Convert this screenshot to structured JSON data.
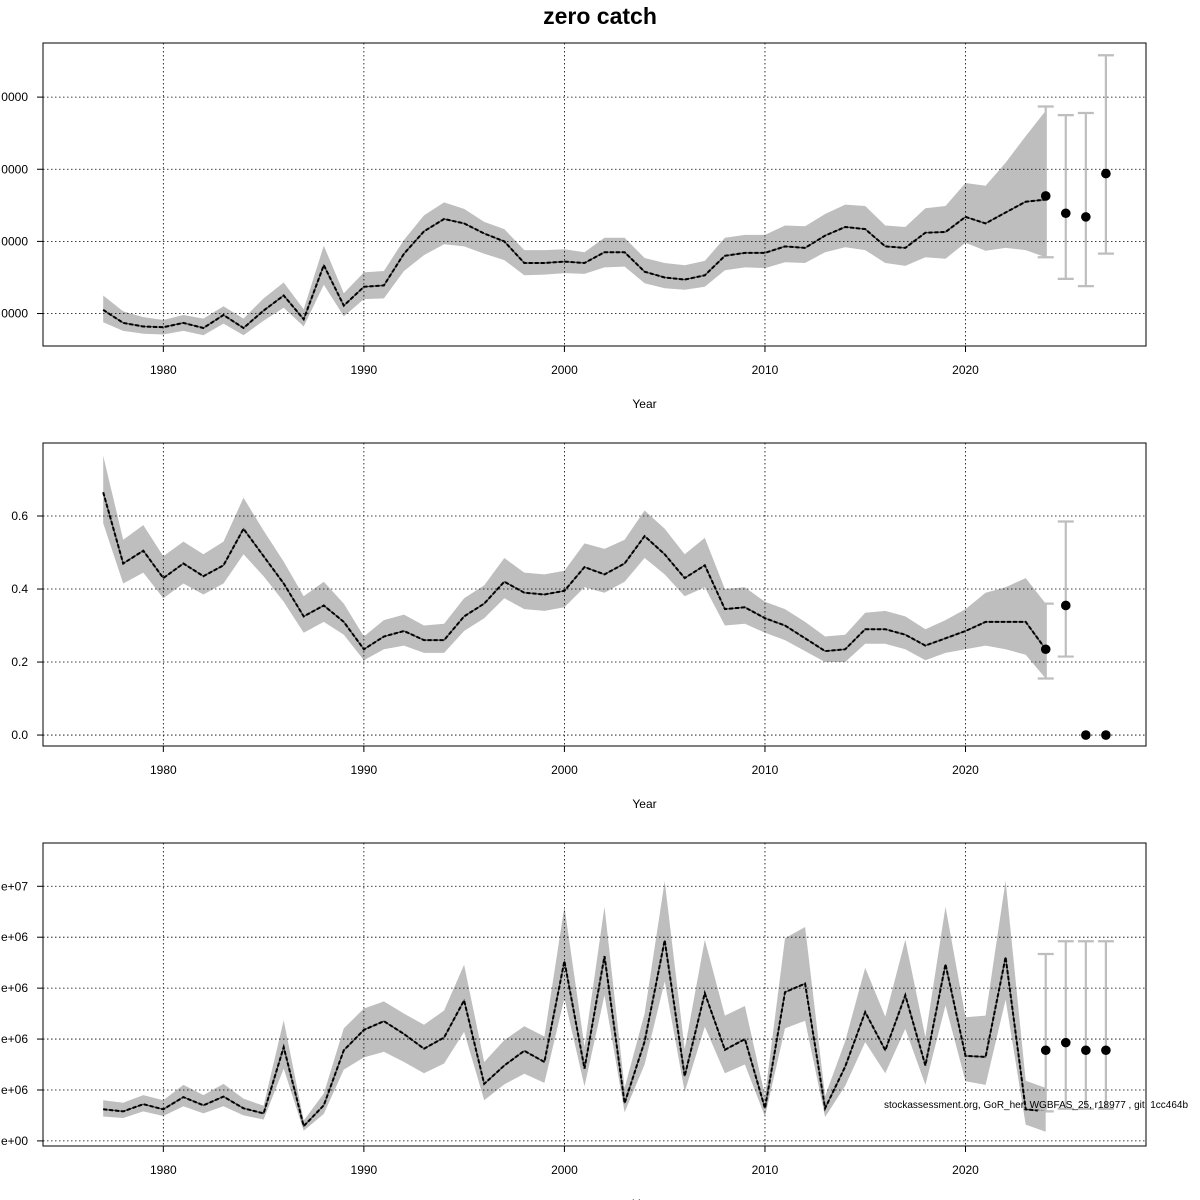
{
  "title": "zero catch",
  "footnote": "stockassessment.org, GoR_her_WGBFAS_25, r18977 , git: 1cc464b",
  "colors": {
    "band": "#bebebe",
    "line": "#000000",
    "grid": "#000000",
    "errorbar": "#bebebe",
    "point": "#000000"
  },
  "chart_data": [
    {
      "type": "line",
      "xlabel": "Year",
      "ylabel": "",
      "xlim": [
        1974,
        2029
      ],
      "ylim": [
        -45000,
        375000
      ],
      "grid": true,
      "x_ticks": [
        1980,
        1990,
        2000,
        2010,
        2020
      ],
      "x_tick_labels": [
        "1980",
        "1990",
        "2000",
        "2010",
        "2020"
      ],
      "y_ticks": [
        0,
        100000,
        200000,
        300000
      ],
      "y_tick_labels": [
        "0000",
        "0000",
        "0000",
        "0000"
      ],
      "years": [
        1977,
        1978,
        1979,
        1980,
        1981,
        1982,
        1983,
        1984,
        1985,
        1986,
        1987,
        1988,
        1989,
        1990,
        1991,
        1992,
        1993,
        1994,
        1995,
        1996,
        1997,
        1998,
        1999,
        2000,
        2001,
        2002,
        2003,
        2004,
        2005,
        2006,
        2007,
        2008,
        2009,
        2010,
        2011,
        2012,
        2013,
        2014,
        2015,
        2016,
        2017,
        2018,
        2019,
        2020,
        2021,
        2022,
        2023,
        2024
      ],
      "estimate": [
        5000,
        -13000,
        -18000,
        -19000,
        -13000,
        -20000,
        -2000,
        -20000,
        4000,
        25000,
        -8000,
        67000,
        11000,
        37000,
        39000,
        83000,
        114000,
        131000,
        125000,
        111000,
        100000,
        70000,
        70000,
        72000,
        70000,
        85000,
        85000,
        58000,
        50000,
        47000,
        53000,
        80000,
        84000,
        84000,
        93000,
        91000,
        108000,
        120000,
        117000,
        93000,
        91000,
        112000,
        113000,
        134000,
        125000,
        140000,
        155000,
        158000
      ],
      "lower": [
        -12000,
        -24000,
        -28000,
        -29000,
        -24000,
        -30000,
        -14000,
        -30000,
        -10000,
        8000,
        -18000,
        40000,
        -4000,
        20000,
        21000,
        59000,
        81000,
        96000,
        93000,
        83000,
        74000,
        53000,
        54000,
        56000,
        55000,
        64000,
        65000,
        42000,
        35000,
        33000,
        37000,
        60000,
        64000,
        63000,
        71000,
        70000,
        85000,
        92000,
        88000,
        70000,
        66000,
        78000,
        76000,
        98000,
        87000,
        91000,
        88000,
        78000
      ],
      "upper": [
        25000,
        3000,
        -5000,
        -9000,
        -2000,
        -7000,
        10000,
        -7000,
        21000,
        43000,
        6000,
        94000,
        28000,
        57000,
        59000,
        102000,
        136000,
        154000,
        145000,
        127000,
        117000,
        88000,
        88000,
        89000,
        85000,
        105000,
        105000,
        77000,
        70000,
        67000,
        73000,
        105000,
        109000,
        109000,
        122000,
        121000,
        138000,
        151000,
        149000,
        122000,
        120000,
        146000,
        149000,
        181000,
        177000,
        209000,
        246000,
        281000
      ],
      "forecast": [
        {
          "x": 2024,
          "y": 163000,
          "low": 78000,
          "high": 287000
        },
        {
          "x": 2025,
          "y": 139000,
          "low": 48000,
          "high": 275000
        },
        {
          "x": 2026,
          "y": 134000,
          "low": 38000,
          "high": 278000
        },
        {
          "x": 2027,
          "y": 194000,
          "low": 83000,
          "high": 358000
        }
      ]
    },
    {
      "type": "line",
      "xlabel": "Year",
      "ylabel": "",
      "xlim": [
        1974,
        2029
      ],
      "ylim": [
        -0.03,
        0.8
      ],
      "grid": true,
      "x_ticks": [
        1980,
        1990,
        2000,
        2010,
        2020
      ],
      "x_tick_labels": [
        "1980",
        "1990",
        "2000",
        "2010",
        "2020"
      ],
      "y_ticks": [
        0.0,
        0.2,
        0.4,
        0.6
      ],
      "y_tick_labels": [
        "0.0",
        "0.2",
        "0.4",
        "0.6"
      ],
      "years": [
        1977,
        1978,
        1979,
        1980,
        1981,
        1982,
        1983,
        1984,
        1985,
        1986,
        1987,
        1988,
        1989,
        1990,
        1991,
        1992,
        1993,
        1994,
        1995,
        1996,
        1997,
        1998,
        1999,
        2000,
        2001,
        2002,
        2003,
        2004,
        2005,
        2006,
        2007,
        2008,
        2009,
        2010,
        2011,
        2012,
        2013,
        2014,
        2015,
        2016,
        2017,
        2018,
        2019,
        2020,
        2021,
        2022,
        2023,
        2024
      ],
      "estimate": [
        0.665,
        0.47,
        0.505,
        0.43,
        0.47,
        0.435,
        0.465,
        0.565,
        0.49,
        0.415,
        0.325,
        0.355,
        0.31,
        0.235,
        0.27,
        0.285,
        0.26,
        0.26,
        0.325,
        0.36,
        0.42,
        0.39,
        0.385,
        0.395,
        0.46,
        0.44,
        0.47,
        0.545,
        0.495,
        0.43,
        0.465,
        0.345,
        0.35,
        0.32,
        0.3,
        0.265,
        0.23,
        0.235,
        0.29,
        0.29,
        0.275,
        0.245,
        0.265,
        0.285,
        0.31,
        0.31,
        0.31,
        0.235
      ],
      "lower": [
        0.58,
        0.415,
        0.445,
        0.375,
        0.415,
        0.385,
        0.415,
        0.495,
        0.435,
        0.365,
        0.28,
        0.31,
        0.275,
        0.205,
        0.235,
        0.245,
        0.225,
        0.225,
        0.285,
        0.32,
        0.375,
        0.345,
        0.34,
        0.35,
        0.405,
        0.39,
        0.42,
        0.485,
        0.44,
        0.38,
        0.405,
        0.3,
        0.305,
        0.28,
        0.26,
        0.23,
        0.2,
        0.2,
        0.25,
        0.25,
        0.235,
        0.205,
        0.225,
        0.235,
        0.245,
        0.235,
        0.22,
        0.155
      ],
      "upper": [
        0.765,
        0.535,
        0.575,
        0.49,
        0.53,
        0.495,
        0.53,
        0.65,
        0.56,
        0.475,
        0.38,
        0.42,
        0.36,
        0.27,
        0.315,
        0.33,
        0.3,
        0.305,
        0.375,
        0.41,
        0.485,
        0.445,
        0.44,
        0.45,
        0.525,
        0.51,
        0.535,
        0.615,
        0.565,
        0.495,
        0.54,
        0.4,
        0.405,
        0.365,
        0.345,
        0.31,
        0.27,
        0.275,
        0.335,
        0.34,
        0.325,
        0.29,
        0.315,
        0.345,
        0.39,
        0.405,
        0.43,
        0.36
      ],
      "forecast": [
        {
          "x": 2024,
          "y": 0.235,
          "low": 0.155,
          "high": 0.36
        },
        {
          "x": 2025,
          "y": 0.355,
          "low": 0.215,
          "high": 0.585
        },
        {
          "x": 2026,
          "y": 0.0,
          "low": null,
          "high": null
        },
        {
          "x": 2027,
          "y": 0.0,
          "low": null,
          "high": null
        }
      ]
    },
    {
      "type": "line",
      "xlabel": "Year",
      "ylabel": "",
      "xlim": [
        1974,
        2029
      ],
      "ylim": [
        -100000,
        5850000
      ],
      "grid": true,
      "x_ticks": [
        1980,
        1990,
        2000,
        2010,
        2020
      ],
      "x_tick_labels": [
        "1980",
        "1990",
        "2000",
        "2010",
        "2020"
      ],
      "y_ticks": [
        0,
        1000000,
        2000000,
        3000000,
        4000000,
        5000000
      ],
      "y_tick_labels": [
        "e+00",
        "e+06",
        "e+06",
        "e+06",
        "e+06",
        "e+07"
      ],
      "years": [
        1977,
        1978,
        1979,
        1980,
        1981,
        1982,
        1983,
        1984,
        1985,
        1986,
        1987,
        1988,
        1989,
        1990,
        1991,
        1992,
        1993,
        1994,
        1995,
        1996,
        1997,
        1998,
        1999,
        2000,
        2001,
        2002,
        2003,
        2004,
        2005,
        2006,
        2007,
        2008,
        2009,
        2010,
        2011,
        2012,
        2013,
        2014,
        2015,
        2016,
        2017,
        2018,
        2019,
        2020,
        2021,
        2022,
        2023,
        2024
      ],
      "estimate": [
        620000,
        580000,
        720000,
        620000,
        860000,
        700000,
        870000,
        640000,
        540000,
        1840000,
        290000,
        700000,
        1780000,
        2180000,
        2350000,
        2100000,
        1810000,
        2030000,
        2760000,
        1120000,
        1480000,
        1770000,
        1550000,
        3530000,
        1420000,
        3630000,
        740000,
        1950000,
        3940000,
        1270000,
        2900000,
        1790000,
        2000000,
        640000,
        2920000,
        3090000,
        640000,
        1460000,
        2530000,
        1780000,
        2860000,
        1480000,
        3470000,
        1670000,
        1650000,
        3610000,
        620000,
        580000
      ],
      "lower": [
        480000,
        450000,
        580000,
        490000,
        680000,
        540000,
        680000,
        500000,
        420000,
        1420000,
        200000,
        530000,
        1400000,
        1640000,
        1750000,
        1550000,
        1330000,
        1520000,
        2140000,
        800000,
        1110000,
        1320000,
        1140000,
        2800000,
        1070000,
        2860000,
        560000,
        1500000,
        3130000,
        960000,
        2240000,
        1330000,
        1500000,
        480000,
        2210000,
        2360000,
        470000,
        1080000,
        1940000,
        1330000,
        2200000,
        1100000,
        2660000,
        1170000,
        1100000,
        2770000,
        320000,
        180000
      ],
      "upper": [
        800000,
        750000,
        900000,
        800000,
        1100000,
        900000,
        1120000,
        830000,
        690000,
        2370000,
        400000,
        930000,
        2210000,
        2600000,
        2740000,
        2500000,
        2280000,
        2560000,
        3460000,
        1550000,
        1980000,
        2250000,
        2050000,
        4600000,
        1850000,
        4600000,
        1040000,
        2500000,
        5100000,
        1800000,
        3950000,
        2460000,
        2650000,
        880000,
        3980000,
        4200000,
        880000,
        1960000,
        3400000,
        2440000,
        3950000,
        2040000,
        4600000,
        2430000,
        2460000,
        5110000,
        1180000,
        1040000
      ],
      "forecast": [
        {
          "x": 2024,
          "y": 1780000,
          "low": 580000,
          "high": 3670000
        },
        {
          "x": 2025,
          "y": 1930000,
          "low": 630000,
          "high": 3920000
        },
        {
          "x": 2026,
          "y": 1780000,
          "low": 630000,
          "high": 3920000
        },
        {
          "x": 2027,
          "y": 1780000,
          "low": 630000,
          "high": 3920000
        }
      ]
    }
  ]
}
